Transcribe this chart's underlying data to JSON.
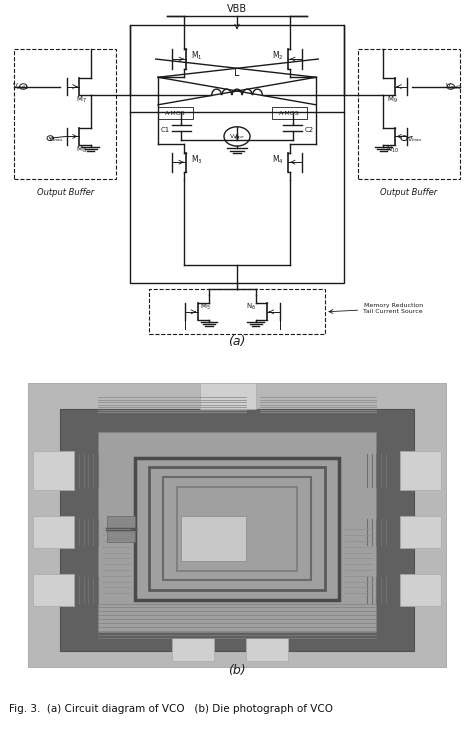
{
  "fig_width": 4.74,
  "fig_height": 7.43,
  "bg_color": "#ffffff",
  "color_main": "#1a1a1a",
  "caption_text": "Fig. 3.  (a) Circuit diagram of VCO   (b) Die photograph of VCO",
  "panel_a_label": "(a)",
  "panel_b_label": "(b)",
  "lw_main": 1.0,
  "lw_thin": 0.7,
  "lw_dashed": 0.8
}
